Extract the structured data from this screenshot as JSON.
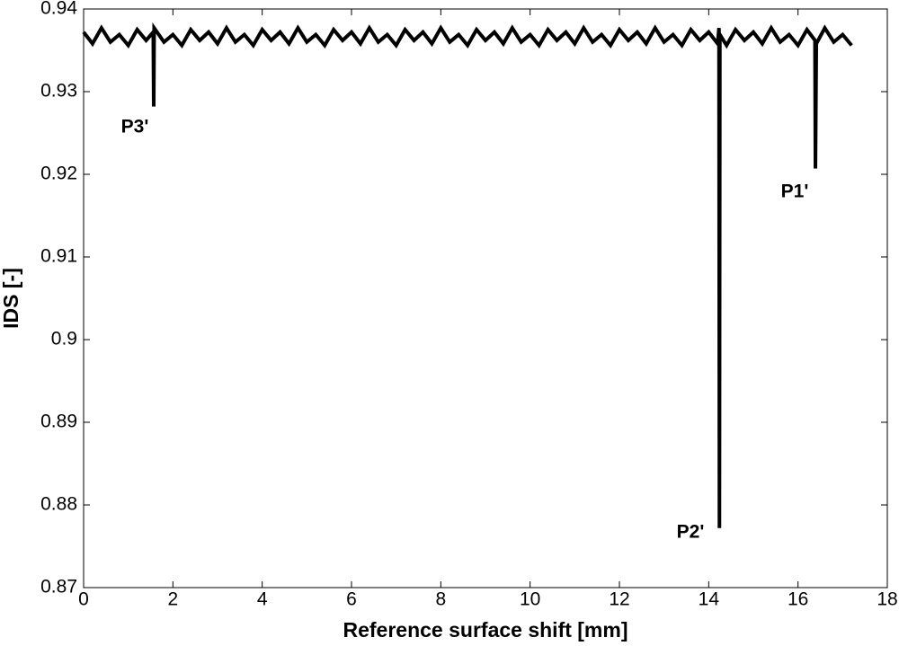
{
  "chart_data": {
    "type": "line",
    "xlabel": "Reference surface shift [mm]",
    "ylabel": "IDS [-]",
    "xlim": [
      0,
      18
    ],
    "xticks": [
      0,
      2,
      4,
      6,
      8,
      10,
      12,
      14,
      16,
      18
    ],
    "ylim": [
      0.87,
      0.94
    ],
    "yticks": [
      0.87,
      0.88,
      0.89,
      0.9,
      0.91,
      0.92,
      0.93,
      0.94
    ],
    "grid": false,
    "series": [
      {
        "color": "#000000",
        "x": [
          0,
          0.2,
          0.4,
          0.6,
          0.8,
          1,
          1.2,
          1.4,
          1.56,
          1.57,
          1.58,
          1.8,
          2,
          2.2,
          2.4,
          2.6,
          2.8,
          3,
          3.2,
          3.4,
          3.6,
          3.8,
          4,
          4.2,
          4.4,
          4.6,
          4.8,
          5,
          5.2,
          5.4,
          5.6,
          5.8,
          6,
          6.2,
          6.4,
          6.6,
          6.8,
          7,
          7.2,
          7.4,
          7.6,
          7.8,
          8,
          8.2,
          8.4,
          8.6,
          8.8,
          9,
          9.2,
          9.4,
          9.6,
          9.8,
          10,
          10.2,
          10.4,
          10.6,
          10.8,
          11,
          11.2,
          11.4,
          11.6,
          11.8,
          12,
          12.2,
          12.4,
          12.6,
          12.8,
          13,
          13.2,
          13.4,
          13.6,
          13.8,
          14,
          14.2,
          14.23,
          14.24,
          14.25,
          14.4,
          14.6,
          14.8,
          15,
          15.2,
          15.4,
          15.6,
          15.8,
          16,
          16.2,
          16.38,
          16.39,
          16.41,
          16.6,
          16.8,
          17,
          17.2
        ],
        "values": [
          0.9372,
          0.9358,
          0.9377,
          0.936,
          0.9369,
          0.9356,
          0.9375,
          0.9362,
          0.9372,
          0.9282,
          0.9377,
          0.936,
          0.9369,
          0.9356,
          0.9375,
          0.9362,
          0.9372,
          0.9358,
          0.9377,
          0.936,
          0.9369,
          0.9356,
          0.9375,
          0.9362,
          0.9372,
          0.9358,
          0.9377,
          0.936,
          0.9369,
          0.9356,
          0.9375,
          0.9362,
          0.9372,
          0.9358,
          0.9377,
          0.936,
          0.9369,
          0.9356,
          0.9375,
          0.9362,
          0.9372,
          0.9358,
          0.9377,
          0.936,
          0.9369,
          0.9356,
          0.9375,
          0.9362,
          0.9372,
          0.9358,
          0.9377,
          0.936,
          0.9369,
          0.9356,
          0.9375,
          0.9362,
          0.9372,
          0.9358,
          0.9377,
          0.936,
          0.9369,
          0.9356,
          0.9375,
          0.9362,
          0.9372,
          0.9358,
          0.9377,
          0.936,
          0.9369,
          0.9356,
          0.9375,
          0.9362,
          0.9372,
          0.9358,
          0.9377,
          0.8772,
          0.9369,
          0.9356,
          0.9375,
          0.9362,
          0.9372,
          0.9358,
          0.9377,
          0.936,
          0.9369,
          0.9356,
          0.9375,
          0.9362,
          0.9207,
          0.9358,
          0.9377,
          0.936,
          0.9369,
          0.9356
        ]
      }
    ],
    "annotations": [
      "P3'",
      "P2'",
      "P1'"
    ]
  }
}
